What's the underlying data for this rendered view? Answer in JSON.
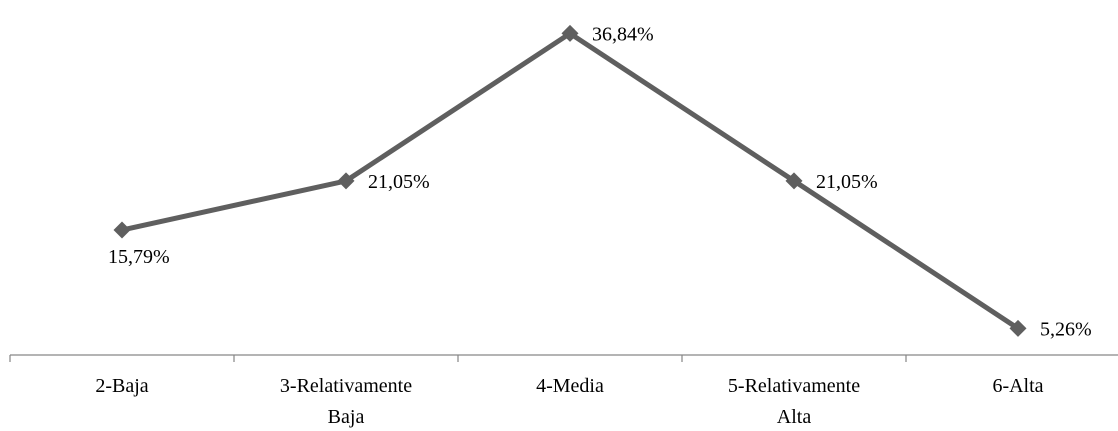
{
  "chart_data": {
    "type": "line",
    "categories": [
      "2-Baja",
      "3-Relativamente Baja",
      "4-Media",
      "5-Relativamente Alta",
      "6-Alta"
    ],
    "category_lines": [
      [
        "2-Baja"
      ],
      [
        "3-Relativamente",
        "Baja"
      ],
      [
        "4-Media"
      ],
      [
        "5-Relativamente",
        "Alta"
      ],
      [
        "6-Alta"
      ]
    ],
    "series": [
      {
        "values": [
          15.79,
          21.05,
          36.84,
          21.05,
          5.26
        ],
        "labels": [
          "15,79%",
          "21,05%",
          "36,84%",
          "21,05%",
          "5,26%"
        ],
        "marker": "diamond",
        "color": "#5f5f5f"
      }
    ],
    "title": "",
    "xlabel": "",
    "ylabel": "",
    "grid": false,
    "legend": "none",
    "axis_color": "#868686"
  }
}
